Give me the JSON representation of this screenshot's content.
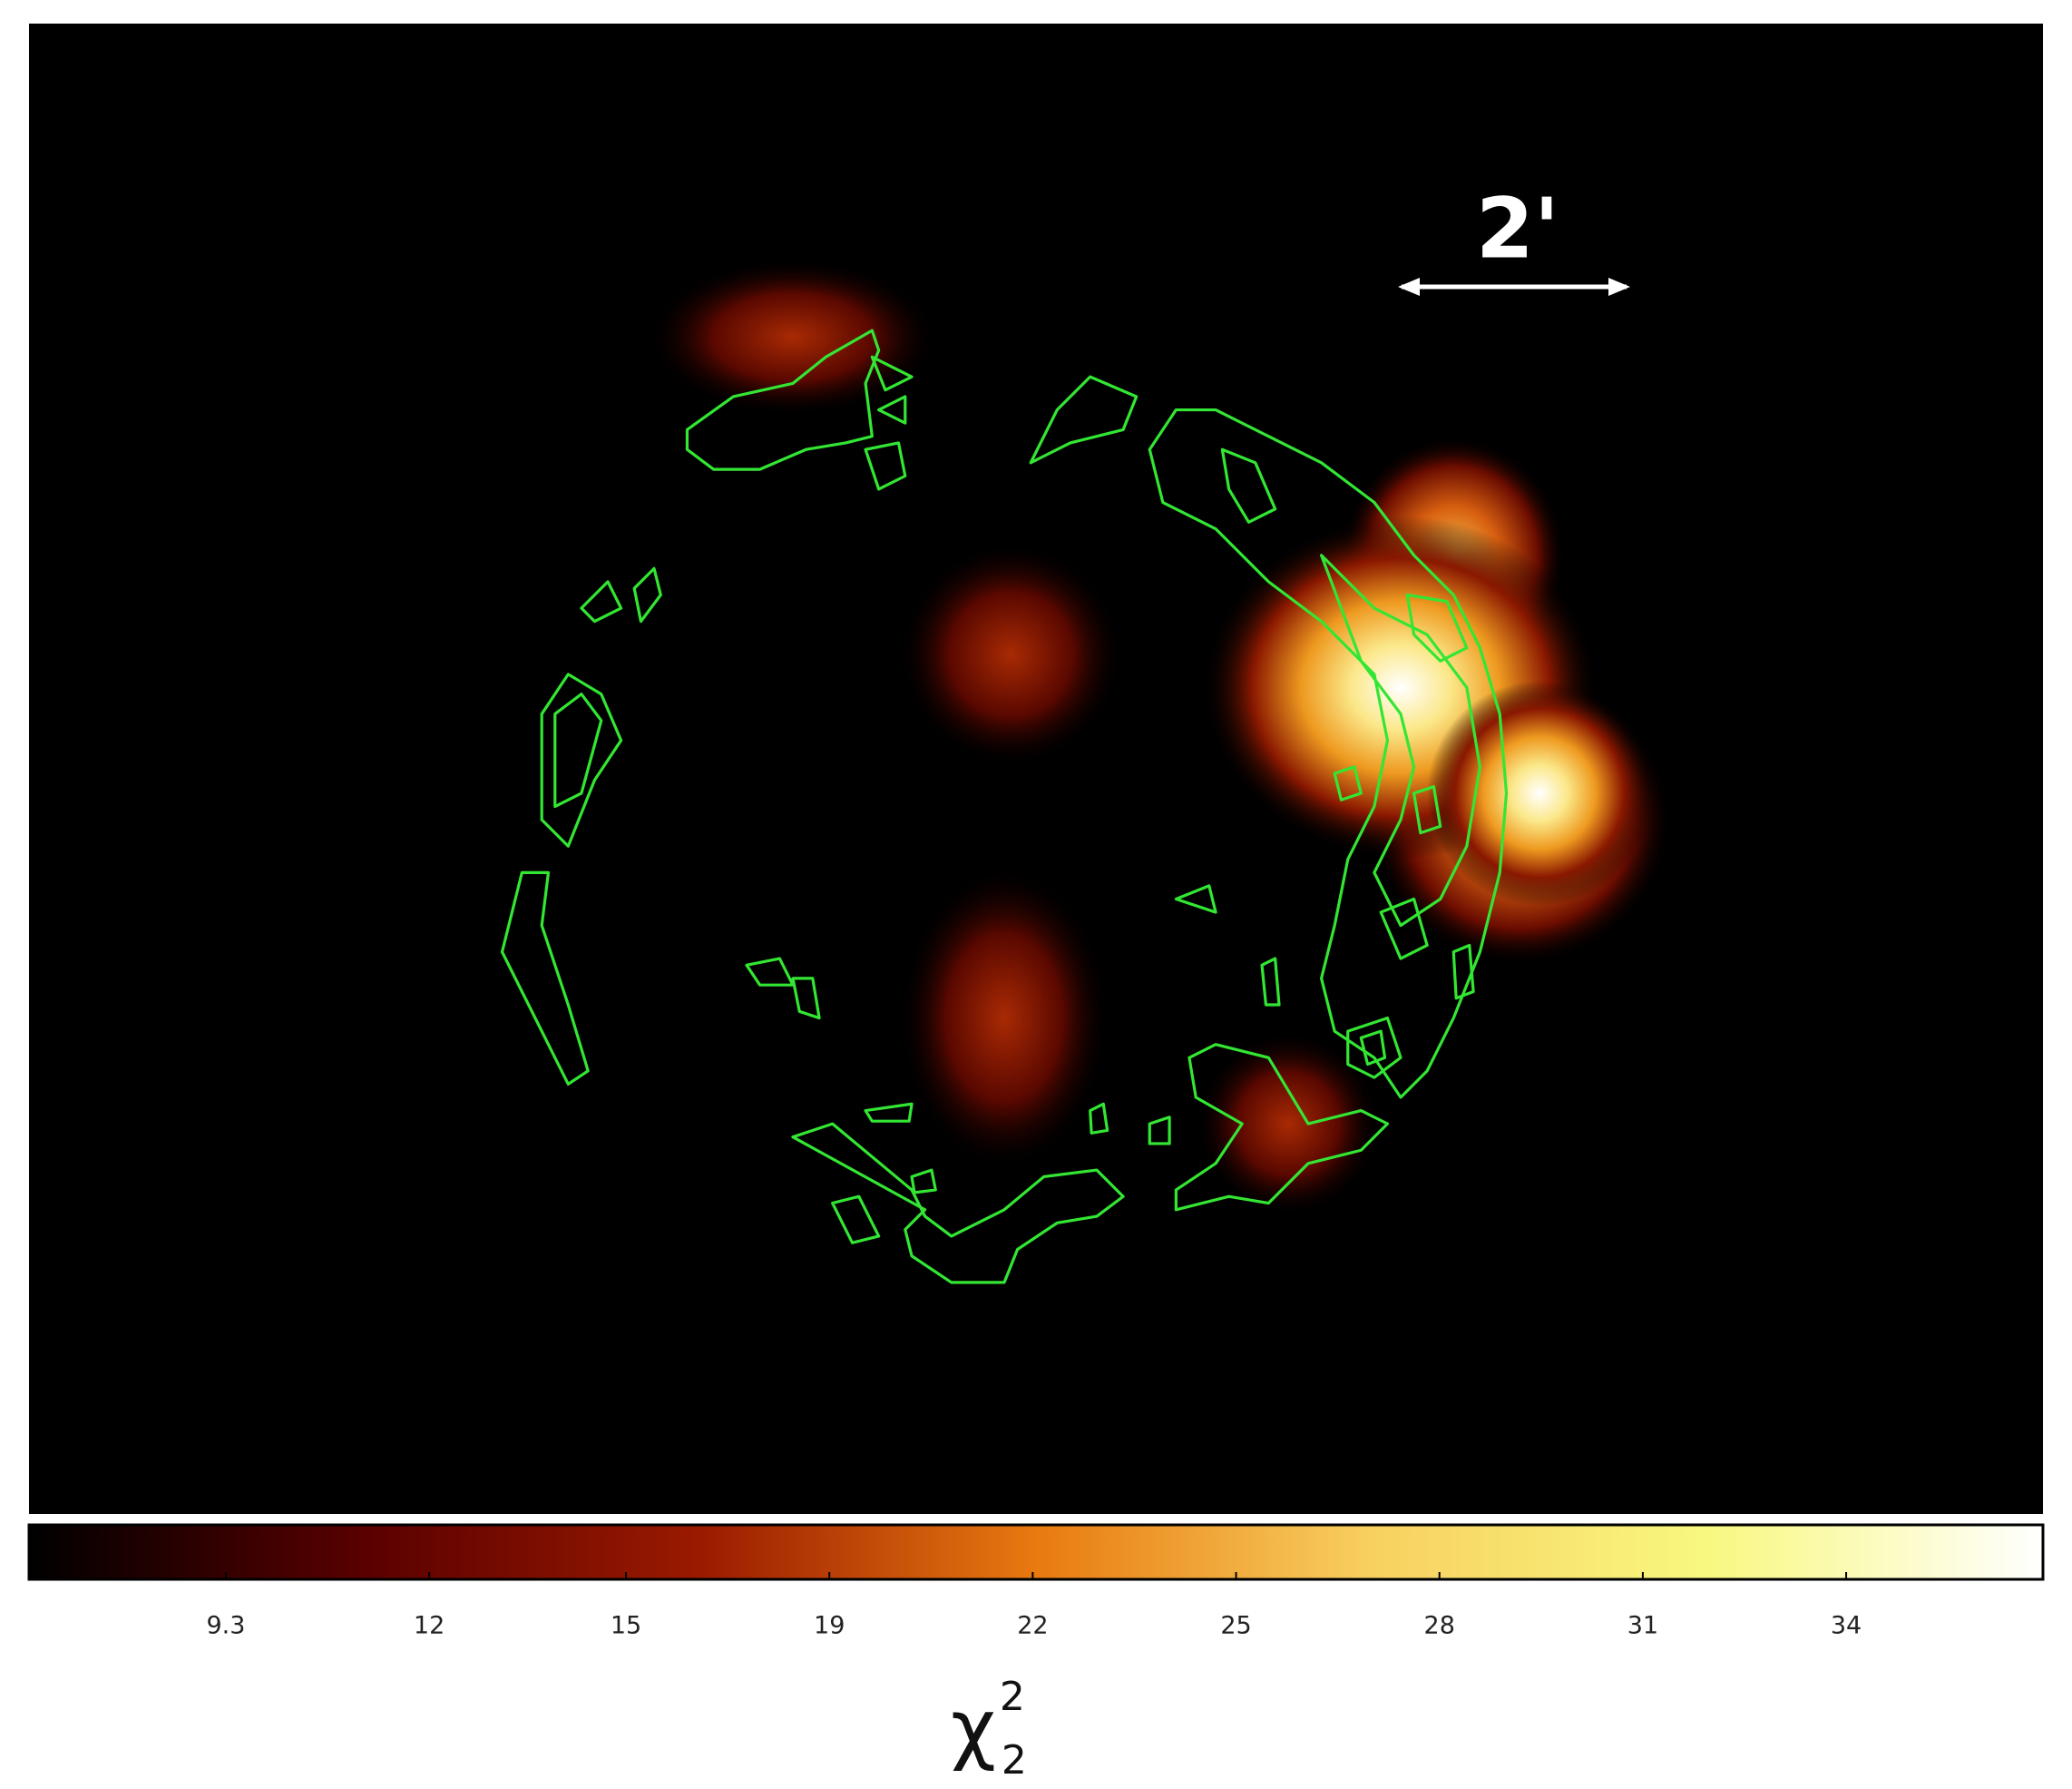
{
  "image": {
    "scale_bar": "2'"
  },
  "colorbar": {
    "label": {
      "symbol": "χ",
      "superscript": "2",
      "subscript": "2"
    },
    "range": [
      6.3,
      37
    ],
    "colormap": [
      "#000000",
      "#5a0000",
      "#9a1a00",
      "#e87a10",
      "#f8d060",
      "#f8f880",
      "#ffffff"
    ],
    "ticks": [
      {
        "value": 9.3,
        "label": "9.3"
      },
      {
        "value": 12.4,
        "label": "12"
      },
      {
        "value": 15.4,
        "label": "15"
      },
      {
        "value": 18.5,
        "label": "19"
      },
      {
        "value": 21.6,
        "label": "22"
      },
      {
        "value": 24.7,
        "label": "25"
      },
      {
        "value": 27.8,
        "label": "28"
      },
      {
        "value": 30.9,
        "label": "31"
      },
      {
        "value": 34,
        "label": "34"
      }
    ]
  }
}
